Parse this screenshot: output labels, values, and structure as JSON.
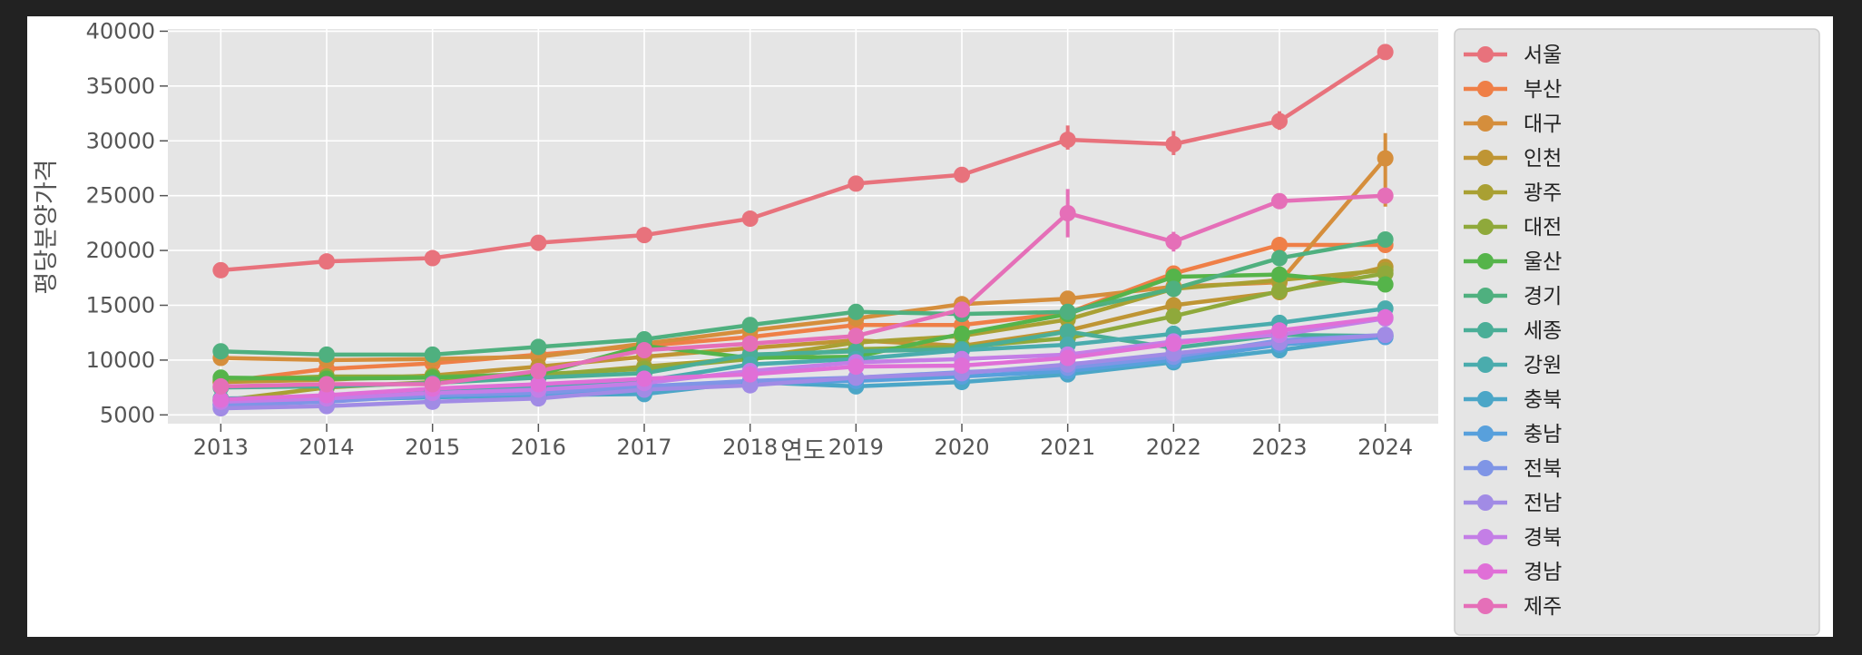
{
  "chart_data": {
    "type": "line",
    "title": "",
    "xlabel": "연도",
    "ylabel": "평당분양가격",
    "x": [
      "2013",
      "2014",
      "2015",
      "2016",
      "2017",
      "2018",
      "2019",
      "2020",
      "2021",
      "2022",
      "2023",
      "2024"
    ],
    "ylim": [
      4200,
      40200
    ],
    "yticks": [
      5000,
      10000,
      15000,
      20000,
      25000,
      30000,
      35000,
      40000
    ],
    "grid": true,
    "legend_position": "outside-right",
    "series": [
      {
        "name": "서울",
        "color": "#e8727c",
        "values": [
          18200,
          19000,
          19300,
          20700,
          21400,
          22900,
          26100,
          26900,
          30100,
          29700,
          31800,
          38100
        ]
      },
      {
        "name": "부산",
        "color": "#ef7f47",
        "values": [
          8000,
          9200,
          9700,
          10500,
          11300,
          12100,
          13200,
          13200,
          14300,
          17900,
          20500,
          20500
        ]
      },
      {
        "name": "대구",
        "color": "#d58e3c",
        "values": [
          10200,
          10000,
          10100,
          10300,
          11500,
          12700,
          13800,
          15100,
          15600,
          16700,
          17100,
          28400
        ]
      },
      {
        "name": "인천",
        "color": "#bf9534",
        "values": [
          8000,
          8200,
          8600,
          9400,
          10300,
          11100,
          11800,
          11300,
          12700,
          15000,
          16200,
          18500
        ]
      },
      {
        "name": "광주",
        "color": "#a9a033",
        "values": [
          6300,
          7500,
          8000,
          8600,
          9400,
          10200,
          11600,
          12200,
          13700,
          16500,
          17300,
          18200
        ]
      },
      {
        "name": "대전",
        "color": "#8fa93b",
        "values": [
          8200,
          8500,
          8500,
          8700,
          9200,
          10100,
          11000,
          11200,
          12000,
          14000,
          16300,
          17900
        ]
      },
      {
        "name": "울산",
        "color": "#55b44a",
        "values": [
          8400,
          8300,
          8400,
          8700,
          11300,
          10200,
          10300,
          12400,
          14200,
          17600,
          17800,
          16900
        ]
      },
      {
        "name": "경기",
        "color": "#4fb07f",
        "values": [
          10800,
          10500,
          10500,
          11200,
          11900,
          13200,
          14400,
          14200,
          14400,
          16500,
          19300,
          21000
        ]
      },
      {
        "name": "세종",
        "color": "#4aae97",
        "values": [
          7500,
          7600,
          7900,
          8400,
          8800,
          10500,
          10800,
          11000,
          12600,
          11100,
          12300,
          12200
        ]
      },
      {
        "name": "강원",
        "color": "#4aacad",
        "values": [
          6500,
          6600,
          7200,
          7500,
          8100,
          9600,
          10100,
          10900,
          11400,
          12400,
          13400,
          14700
        ]
      },
      {
        "name": "충북",
        "color": "#4ba6c7",
        "values": [
          6300,
          6400,
          6600,
          6800,
          6900,
          8000,
          7600,
          8000,
          8700,
          9800,
          10900,
          12200
        ]
      },
      {
        "name": "충남",
        "color": "#58a0dc",
        "values": [
          6000,
          6300,
          6700,
          6900,
          7400,
          7900,
          8100,
          8500,
          9000,
          10000,
          11400,
          12100
        ]
      },
      {
        "name": "전북",
        "color": "#7f95e6",
        "values": [
          5900,
          6200,
          6800,
          7000,
          7600,
          8100,
          8400,
          8900,
          9300,
          10300,
          11800,
          12300
        ]
      },
      {
        "name": "전남",
        "color": "#a18be5",
        "values": [
          5600,
          5800,
          6200,
          6500,
          7300,
          7700,
          8400,
          8800,
          9600,
          10600,
          11600,
          12300
        ]
      },
      {
        "name": "경북",
        "color": "#c47ee6",
        "values": [
          6200,
          6500,
          7000,
          7300,
          7900,
          9000,
          9800,
          10100,
          10500,
          11700,
          12300,
          13800
        ]
      },
      {
        "name": "경남",
        "color": "#e06fd7",
        "values": [
          6400,
          6800,
          7400,
          7800,
          8300,
          8700,
          9400,
          9500,
          10200,
          11500,
          12700,
          13900
        ]
      },
      {
        "name": "제주",
        "color": "#e56fb8",
        "values": [
          7600,
          7800,
          7800,
          9000,
          10900,
          11500,
          12200,
          14600,
          23400,
          20800,
          24500,
          25000
        ]
      }
    ],
    "error_bars": [
      {
        "series": "서울",
        "x": "2015",
        "low": 18900,
        "high": 19800
      },
      {
        "series": "서울",
        "x": "2021",
        "low": 29200,
        "high": 31400
      },
      {
        "series": "서울",
        "x": "2022",
        "low": 28700,
        "high": 30900
      },
      {
        "series": "서울",
        "x": "2023",
        "low": 31000,
        "high": 32700
      },
      {
        "series": "대구",
        "x": "2024",
        "low": 24000,
        "high": 30700
      },
      {
        "series": "부산",
        "x": "2023",
        "low": 19800,
        "high": 21200
      },
      {
        "series": "제주",
        "x": "2021",
        "low": 21200,
        "high": 25600
      },
      {
        "series": "제주",
        "x": "2022",
        "low": 19900,
        "high": 21700
      },
      {
        "series": "제주",
        "x": "2023",
        "low": 23900,
        "high": 25100
      }
    ]
  }
}
